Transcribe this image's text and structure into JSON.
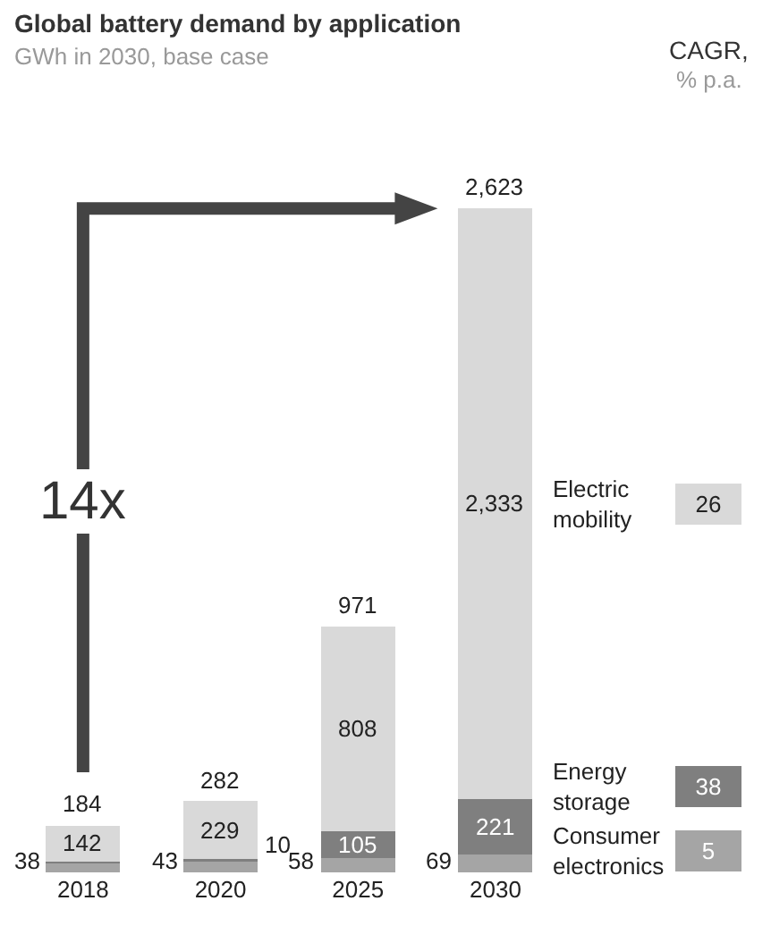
{
  "chart_data": {
    "type": "bar",
    "stacked": true,
    "title": "Global battery demand by application",
    "subtitle": "GWh in 2030, base case",
    "categories": [
      "2018",
      "2020",
      "2025",
      "2030"
    ],
    "series": [
      {
        "name": "Consumer electronics",
        "color": "#a5a5a5",
        "values": [
          38,
          43,
          58,
          69
        ],
        "value_labels": [
          "38",
          "43",
          "58",
          "69"
        ]
      },
      {
        "name": "Energy storage",
        "color": "#7f7f7f",
        "values": [
          4,
          10,
          105,
          221
        ],
        "value_labels": [
          null,
          "10",
          "105",
          "221"
        ]
      },
      {
        "name": "Electric mobility",
        "color": "#d9d9d9",
        "values": [
          142,
          229,
          808,
          2333
        ],
        "value_labels": [
          "142",
          "229",
          "808",
          "2,333"
        ]
      }
    ],
    "totals": [
      "184",
      "282",
      "971",
      "2,623"
    ],
    "annotations": [
      "14x",
      "CAGR,",
      "% p.a.",
      "26",
      "38",
      "5"
    ],
    "tick_labels": "x",
    "grid": false,
    "legend": "right"
  }
}
